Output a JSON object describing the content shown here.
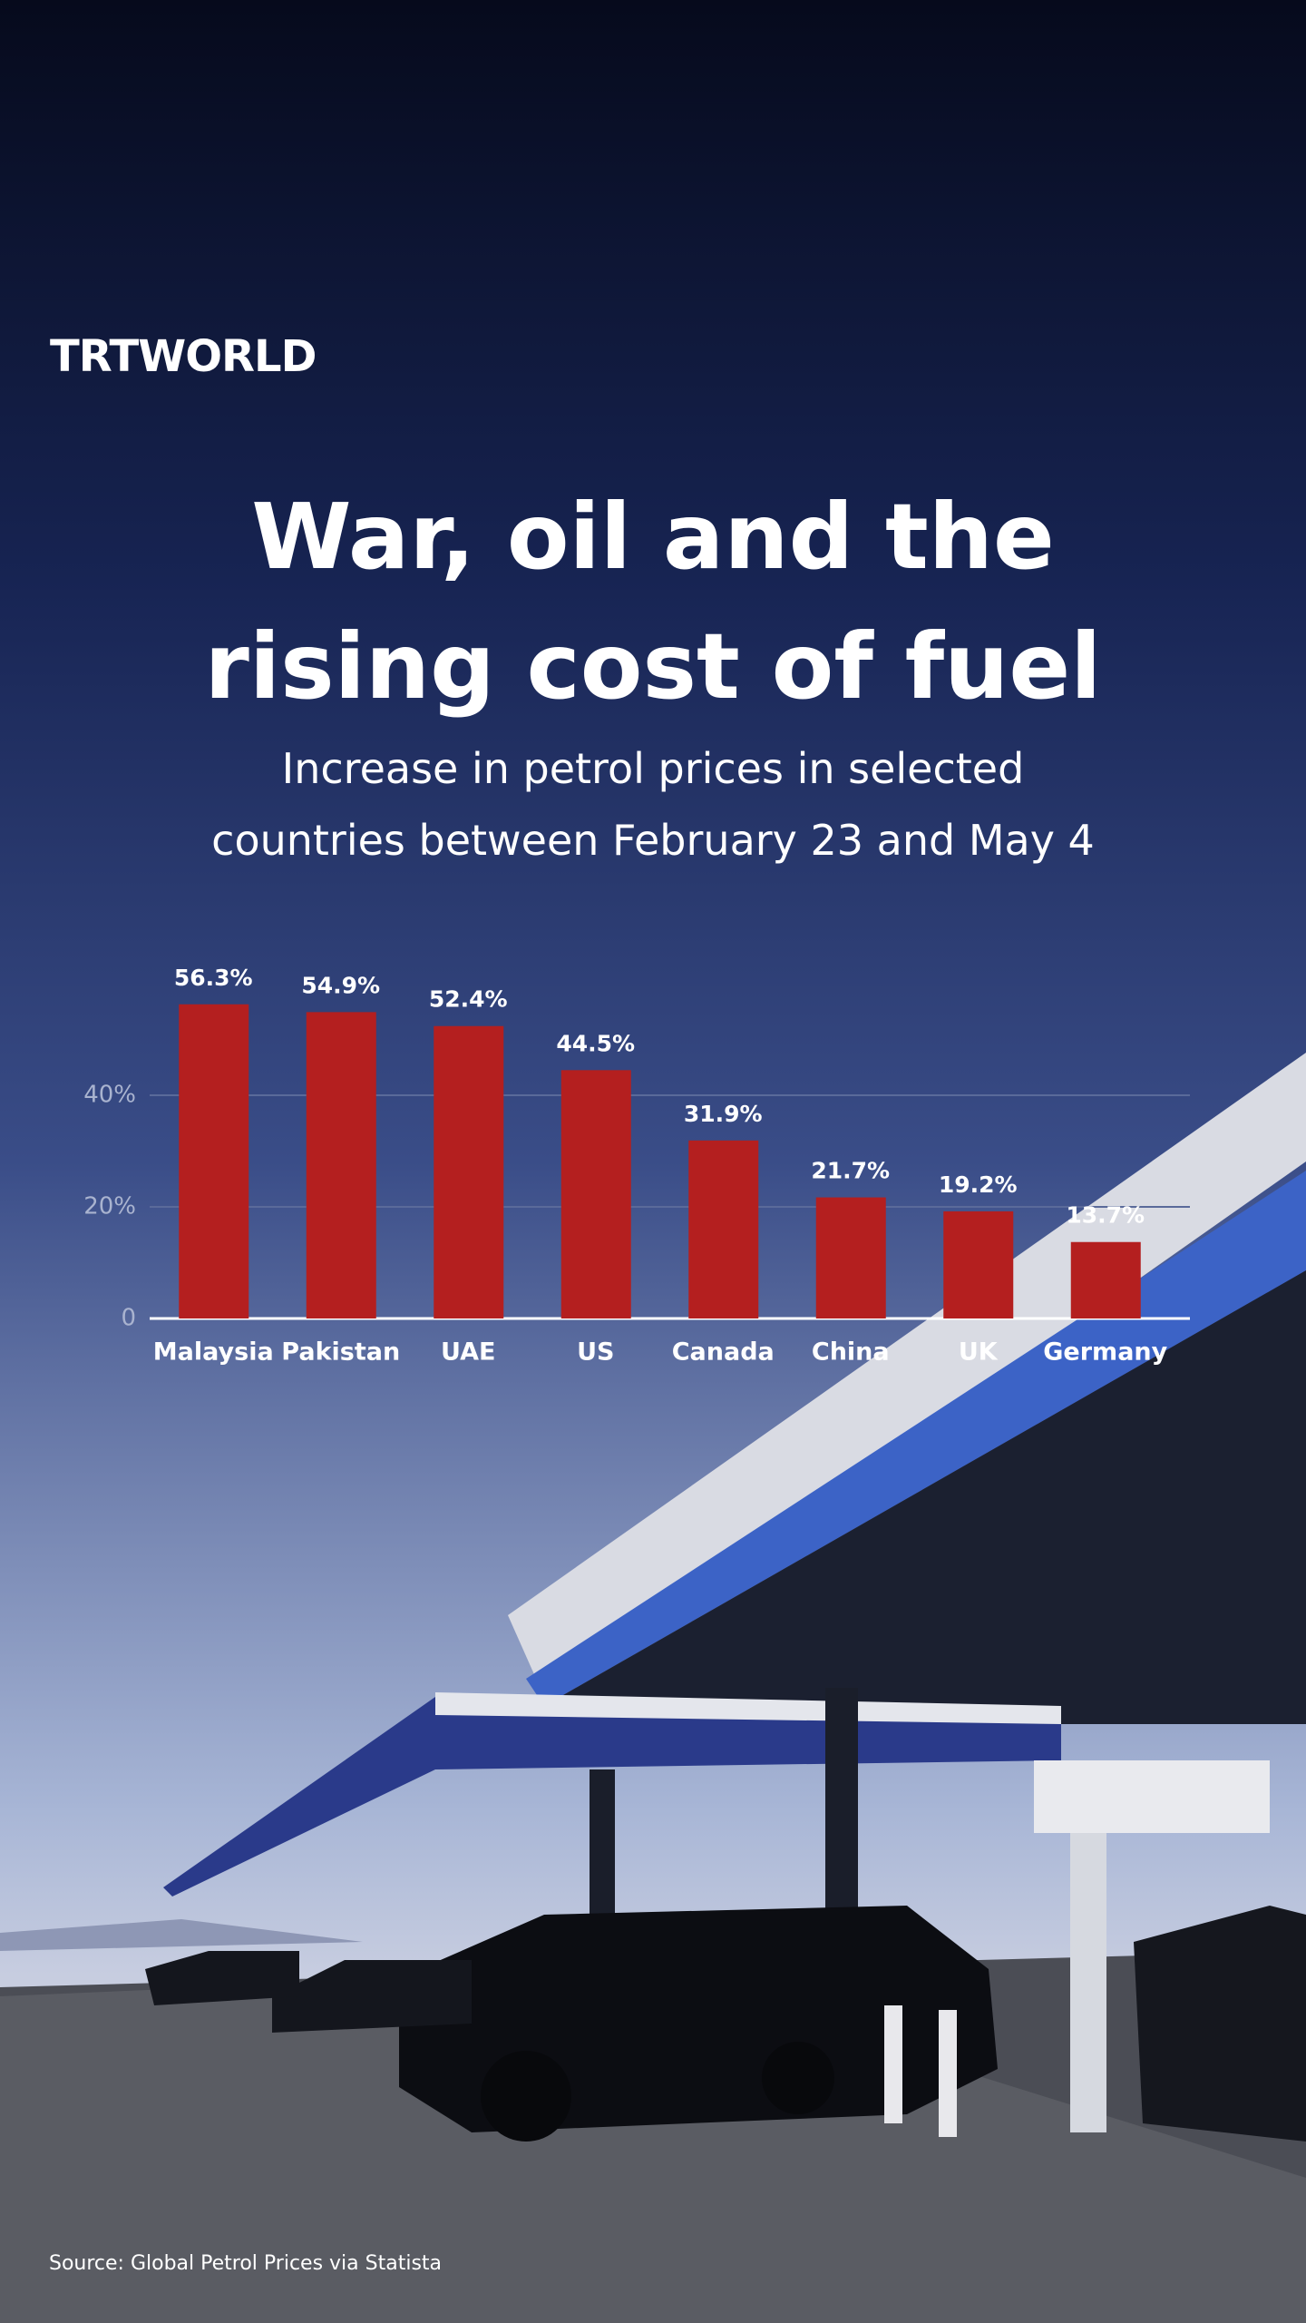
{
  "brand": "TRTWORLD",
  "chart_data": {
    "type": "bar",
    "title": "War, oil and the rising cost of fuel",
    "subtitle": "Increase in petrol prices in selected countries between February 23 and May 4",
    "categories": [
      "Malaysia",
      "Pakistan",
      "UAE",
      "US",
      "Canada",
      "China",
      "UK",
      "Germany"
    ],
    "values": [
      56.3,
      54.9,
      52.4,
      44.5,
      31.9,
      21.7,
      19.2,
      13.7
    ],
    "value_labels": [
      "56.3%",
      "54.9%",
      "52.4%",
      "44.5%",
      "31.9%",
      "21.7%",
      "19.2%",
      "13.7%"
    ],
    "color": "#b41f1f",
    "ylim": [
      0,
      60
    ],
    "yticks": [
      0,
      {
        "value": 20,
        "label": "20%"
      },
      {
        "value": 40,
        "label": "40%"
      }
    ],
    "grid": true
  },
  "source": "Source: Global Petrol Prices via Statista"
}
